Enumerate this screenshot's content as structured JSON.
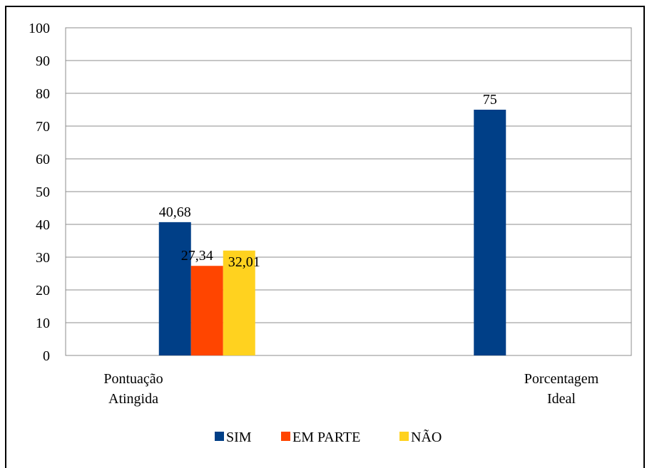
{
  "chart_data": {
    "type": "bar",
    "categories": [
      "Pontuação Atingida",
      "Porcentagem Ideal"
    ],
    "category_lines": [
      [
        "Pontuação",
        "Atingida"
      ],
      [
        "Porcentagem",
        "Ideal"
      ]
    ],
    "series": [
      {
        "name": "SIM",
        "color": "#003F87",
        "values": [
          40.68,
          75
        ],
        "labels": [
          "40,68",
          "75"
        ]
      },
      {
        "name": "EM PARTE",
        "color": "#FF4500",
        "values": [
          27.34,
          null
        ],
        "labels": [
          "27,34",
          ""
        ]
      },
      {
        "name": "NÃO",
        "color": "#FFD21F",
        "values": [
          32.01,
          null
        ],
        "labels": [
          "32,01",
          ""
        ]
      }
    ],
    "ylim": [
      0,
      100
    ],
    "yticks": [
      0,
      10,
      20,
      30,
      40,
      50,
      60,
      70,
      80,
      90,
      100
    ],
    "grid": true,
    "legend_position": "bottom",
    "title": "",
    "xlabel": "",
    "ylabel": ""
  }
}
